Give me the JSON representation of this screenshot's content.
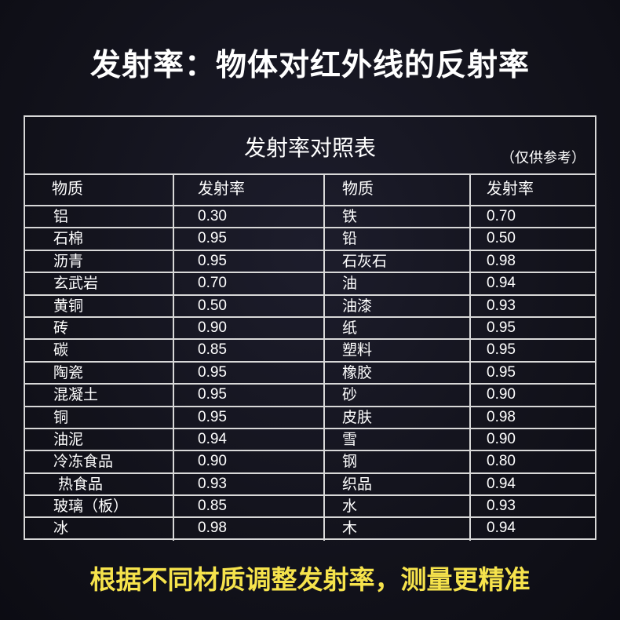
{
  "headline": "发射率：物体对红外线的反射率",
  "table": {
    "title": "发射率对照表",
    "note": "（仅供参考）",
    "headers": [
      "物质",
      "发射率",
      "物质",
      "发射率"
    ],
    "rows": [
      [
        "铝",
        "0.30",
        "铁",
        "0.70"
      ],
      [
        "石棉",
        "0.95",
        "铅",
        "0.50"
      ],
      [
        "沥青",
        "0.95",
        "石灰石",
        "0.98"
      ],
      [
        "玄武岩",
        "0.70",
        "油",
        "0.94"
      ],
      [
        "黄铜",
        "0.50",
        "油漆",
        "0.93"
      ],
      [
        "砖",
        "0.90",
        "纸",
        "0.95"
      ],
      [
        "碳",
        "0.85",
        "塑料",
        "0.95"
      ],
      [
        "陶瓷",
        "0.95",
        "橡胶",
        "0.95"
      ],
      [
        "混凝土",
        "0.95",
        "砂",
        "0.90"
      ],
      [
        "铜",
        "0.95",
        "皮肤",
        "0.98"
      ],
      [
        "油泥",
        "0.94",
        "雪",
        "0.90"
      ],
      [
        "冷冻食品",
        "0.90",
        "钢",
        "0.80"
      ],
      [
        " 热食品",
        "0.93",
        "织品",
        "0.94"
      ],
      [
        "玻璃（板）",
        "0.85",
        "水",
        "0.93"
      ],
      [
        "冰",
        "0.98",
        "木",
        "0.94"
      ]
    ]
  },
  "footer": "根据不同材质调整发射率，测量更精准",
  "colors": {
    "background": "#14141f",
    "footer_text": "#f6e34c",
    "border": "#d8d8d8"
  }
}
